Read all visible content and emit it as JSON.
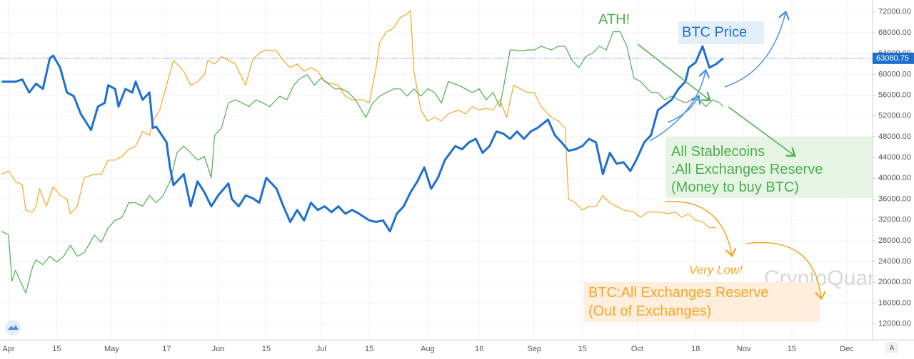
{
  "chart_data": {
    "type": "line",
    "xlim": [
      -2.5,
      251.5
    ],
    "ylim": [
      9900,
      74300
    ],
    "grid": true,
    "xticks": [
      {
        "value": 0,
        "label": "Apr"
      },
      {
        "value": 14,
        "label": "15"
      },
      {
        "value": 30,
        "label": "May"
      },
      {
        "value": 46,
        "label": "17"
      },
      {
        "value": 61,
        "label": "Jun"
      },
      {
        "value": 75,
        "label": "15"
      },
      {
        "value": 91,
        "label": "Jul"
      },
      {
        "value": 105,
        "label": "15"
      },
      {
        "value": 122,
        "label": "Aug"
      },
      {
        "value": 137,
        "label": "16"
      },
      {
        "value": 153,
        "label": "Sep"
      },
      {
        "value": 167,
        "label": "15"
      },
      {
        "value": 183,
        "label": "Oct"
      },
      {
        "value": 200,
        "label": "18"
      },
      {
        "value": 214,
        "label": "Nov"
      },
      {
        "value": 228,
        "label": "15"
      },
      {
        "value": 244,
        "label": "Dec"
      }
    ],
    "yticks": [
      {
        "value": 12000,
        "label": "12000.00"
      },
      {
        "value": 16000,
        "label": "16000.00"
      },
      {
        "value": 20000,
        "label": "20000.00"
      },
      {
        "value": 24000,
        "label": "24000.00"
      },
      {
        "value": 28000,
        "label": "28000.00"
      },
      {
        "value": 32000,
        "label": "32000.00"
      },
      {
        "value": 36000,
        "label": "36000.00"
      },
      {
        "value": 40000,
        "label": "40000.00"
      },
      {
        "value": 44000,
        "label": "44000.00"
      },
      {
        "value": 48000,
        "label": "48000.00"
      },
      {
        "value": 52000,
        "label": "52000.00"
      },
      {
        "value": 56000,
        "label": "56000.00"
      },
      {
        "value": 60000,
        "label": "60000.00"
      },
      {
        "value": 64000,
        "label": "64000.00"
      },
      {
        "value": 68000,
        "label": "68000.00"
      },
      {
        "value": 72000,
        "label": "72000.00"
      }
    ],
    "series": [
      {
        "color": "#f5a623",
        "width": 1.2,
        "x": [
          -2,
          0,
          2,
          4,
          5,
          7,
          8,
          9,
          11,
          13,
          15,
          17,
          18,
          20,
          22,
          25,
          27,
          29,
          31,
          33,
          35,
          37,
          39,
          41,
          42,
          44,
          46,
          48,
          51,
          53,
          55,
          57,
          58,
          60,
          62,
          64,
          66,
          68,
          69,
          71,
          73,
          75,
          78,
          80,
          82,
          84,
          86,
          88,
          90,
          92,
          94,
          96,
          98,
          100,
          103,
          105,
          107,
          108,
          110,
          112,
          114,
          116,
          117,
          118,
          120,
          122,
          124,
          126,
          128,
          131,
          133,
          135,
          137,
          139,
          141,
          143,
          145,
          147,
          149,
          151,
          153,
          155,
          158,
          160,
          162,
          163,
          165,
          167,
          169,
          171,
          173,
          175,
          177,
          179,
          182,
          184,
          186,
          188,
          190,
          192,
          194,
          196,
          198,
          200,
          202,
          204,
          206
        ],
        "values": [
          40800,
          41400,
          39400,
          38700,
          33900,
          33500,
          34600,
          38000,
          34600,
          38400,
          36700,
          36000,
          33200,
          34600,
          40100,
          40800,
          40800,
          43500,
          43500,
          44200,
          45600,
          46200,
          49000,
          48300,
          51000,
          53100,
          57900,
          62700,
          60600,
          57900,
          58600,
          59900,
          62700,
          62000,
          63400,
          62700,
          62000,
          59300,
          57900,
          62700,
          64100,
          64700,
          64500,
          62700,
          61300,
          62000,
          60600,
          61300,
          60600,
          58600,
          58200,
          57900,
          55800,
          55100,
          55100,
          54500,
          61300,
          66100,
          68200,
          68800,
          70900,
          71600,
          72300,
          60600,
          53100,
          51000,
          51700,
          51000,
          52400,
          53100,
          52400,
          53800,
          53100,
          53500,
          53100,
          55100,
          51700,
          57900,
          57200,
          56500,
          56500,
          53800,
          51700,
          51000,
          49700,
          36000,
          35300,
          33900,
          34600,
          34600,
          36700,
          35300,
          34600,
          33900,
          33500,
          32500,
          33500,
          33500,
          33500,
          33200,
          33500,
          32500,
          33200,
          31900,
          31600,
          30500,
          30500
        ]
      },
      {
        "color": "#4caf50",
        "width": 1.2,
        "x": [
          -2,
          0,
          1,
          2,
          5,
          7,
          8,
          10,
          12,
          14,
          16,
          18,
          20,
          22,
          25,
          27,
          29,
          31,
          33,
          35,
          37,
          39,
          41,
          43,
          45,
          47,
          49,
          51,
          53,
          55,
          57,
          59,
          60,
          62,
          64,
          66,
          68,
          70,
          72,
          74,
          76,
          79,
          81,
          83,
          85,
          87,
          89,
          91,
          93,
          95,
          97,
          99,
          101,
          104,
          106,
          108,
          110,
          112,
          114,
          116,
          118,
          120,
          122,
          124,
          126,
          128,
          131,
          133,
          135,
          137,
          139,
          141,
          143,
          144,
          146,
          147,
          149,
          151,
          153,
          155,
          158,
          160,
          162,
          164,
          166,
          168,
          170,
          172,
          174,
          176,
          178,
          180,
          182,
          184,
          186,
          187,
          189,
          191,
          193,
          195,
          197,
          199,
          201,
          203,
          205,
          207,
          208
        ],
        "values": [
          29800,
          29100,
          20200,
          22300,
          17900,
          23000,
          24300,
          23400,
          25000,
          23900,
          25000,
          27100,
          25000,
          25700,
          29100,
          27700,
          30500,
          31900,
          32500,
          35300,
          35300,
          34600,
          36700,
          35300,
          36700,
          39400,
          44900,
          46200,
          44900,
          43500,
          44200,
          40100,
          48300,
          49700,
          54500,
          55100,
          54500,
          53800,
          55100,
          54500,
          53800,
          55800,
          55100,
          57900,
          59300,
          59900,
          57900,
          59300,
          58200,
          57200,
          57200,
          56500,
          55100,
          51700,
          54500,
          55800,
          56500,
          57200,
          57200,
          55800,
          57200,
          55800,
          57200,
          56500,
          54500,
          58600,
          57900,
          57200,
          56500,
          57200,
          55100,
          56500,
          53800,
          57200,
          64700,
          64700,
          64500,
          64700,
          64700,
          65400,
          64700,
          65400,
          65400,
          62700,
          61300,
          63400,
          64100,
          65400,
          64700,
          68200,
          68200,
          65400,
          59300,
          58600,
          57200,
          56500,
          56500,
          55100,
          55800,
          55100,
          54500,
          55100,
          55100,
          53800,
          55100,
          54500,
          53800
        ]
      },
      {
        "color": "#1e6fce",
        "width": 3,
        "x": [
          -2,
          2,
          4,
          6,
          8,
          10,
          12,
          13,
          15,
          17,
          19,
          21,
          24,
          26,
          28,
          29,
          31,
          32,
          34,
          36,
          37,
          39,
          41,
          42,
          43,
          46,
          47,
          48,
          51,
          53,
          55,
          57,
          59,
          61,
          64,
          65,
          67,
          69,
          71,
          73,
          75,
          78,
          80,
          82,
          84,
          86,
          88,
          90,
          92,
          94,
          96,
          98,
          100,
          102,
          105,
          107,
          109,
          111,
          113,
          115,
          117,
          119,
          121,
          123,
          125,
          127,
          130,
          132,
          134,
          136,
          138,
          140,
          142,
          144,
          146,
          148,
          150,
          152,
          154,
          157,
          159,
          161,
          163,
          165,
          167,
          169,
          171,
          173,
          175,
          177,
          179,
          181,
          183,
          185,
          187,
          189,
          191,
          193,
          195,
          197,
          198,
          200,
          202,
          204,
          206,
          208
        ],
        "values": [
          58600,
          58600,
          59000,
          56500,
          58200,
          57200,
          63100,
          63600,
          61300,
          56500,
          55800,
          52400,
          49300,
          53800,
          54500,
          57900,
          57200,
          53800,
          57200,
          56500,
          58600,
          55100,
          56500,
          49700,
          49900,
          46900,
          42100,
          38700,
          40800,
          34600,
          39400,
          37300,
          34600,
          36700,
          39000,
          36000,
          34600,
          36700,
          36200,
          35300,
          40100,
          38000,
          34600,
          31600,
          33900,
          31900,
          35300,
          33900,
          34600,
          33500,
          34600,
          33200,
          33900,
          33200,
          31900,
          31600,
          31900,
          29800,
          33200,
          34600,
          37300,
          39400,
          42100,
          38000,
          40100,
          43500,
          46200,
          45600,
          46900,
          47600,
          44900,
          46200,
          49000,
          48600,
          47600,
          49000,
          47600,
          49000,
          49700,
          51300,
          48300,
          46900,
          45300,
          45600,
          46200,
          47600,
          46900,
          40800,
          44900,
          42800,
          43100,
          41400,
          43900,
          46900,
          48300,
          53100,
          54100,
          55100,
          57200,
          58600,
          61300,
          62300,
          65400,
          61300,
          62000,
          63080.75
        ]
      }
    ],
    "annotations": {
      "ath": "ATH!",
      "btc_price": "BTC Price",
      "stablecoins": [
        "All Stablecoins",
        ":All Exchanges Reserve",
        "(Money to buy BTC)"
      ],
      "very_low": "Very Low!",
      "reserve": [
        "BTC:All Exchanges Reserve",
        "(Out of Exchanges)"
      ],
      "watermark": "CryptoQuant"
    },
    "bottom_button": "A"
  }
}
